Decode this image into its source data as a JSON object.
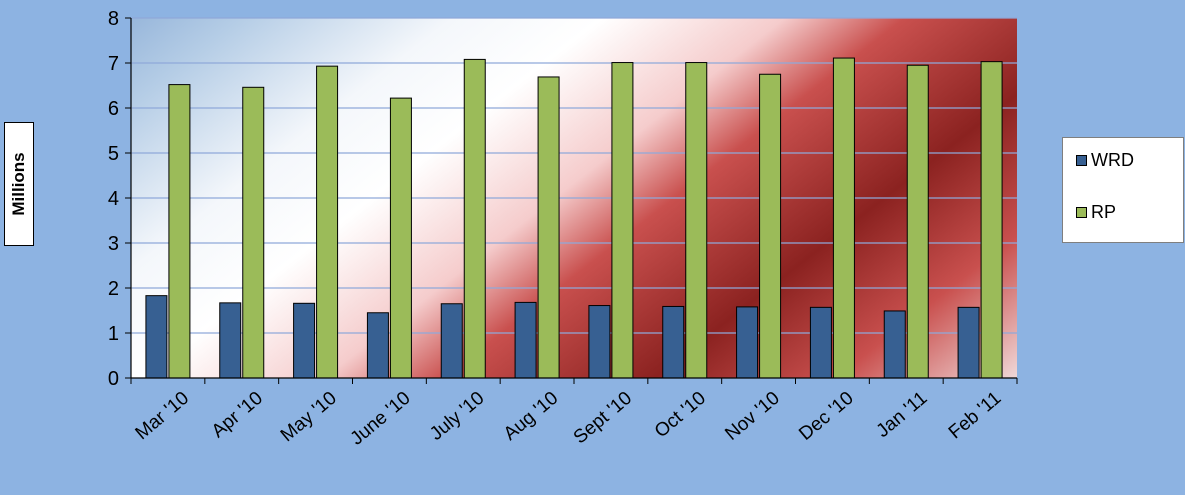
{
  "chart_data": {
    "type": "bar",
    "ylabel": "Millions",
    "ylim": [
      0,
      8
    ],
    "yticks": [
      "0",
      "1",
      "2",
      "3",
      "4",
      "5",
      "6",
      "7",
      "8"
    ],
    "grid": true,
    "legend_position": "right",
    "categories": [
      "Mar '10",
      "Apr '10",
      "May '10",
      "June '10",
      "July '10",
      "Aug '10",
      "Sept '10",
      "Oct '10",
      "Nov '10",
      "Dec '10",
      "Jan '11",
      "Feb '11"
    ],
    "series": [
      {
        "name": "WRD",
        "color": "#376092",
        "values": [
          1.83,
          1.67,
          1.66,
          1.45,
          1.65,
          1.68,
          1.61,
          1.59,
          1.58,
          1.57,
          1.49,
          1.57
        ]
      },
      {
        "name": "RP",
        "color": "#9bbb59",
        "values": [
          6.52,
          6.46,
          6.93,
          6.22,
          7.08,
          6.69,
          7.01,
          7.01,
          6.75,
          7.11,
          6.95,
          7.03
        ]
      }
    ]
  },
  "colors": {
    "background": "#8db3e2",
    "plot_red": "#c0504d",
    "plot_white": "#ffffff"
  }
}
